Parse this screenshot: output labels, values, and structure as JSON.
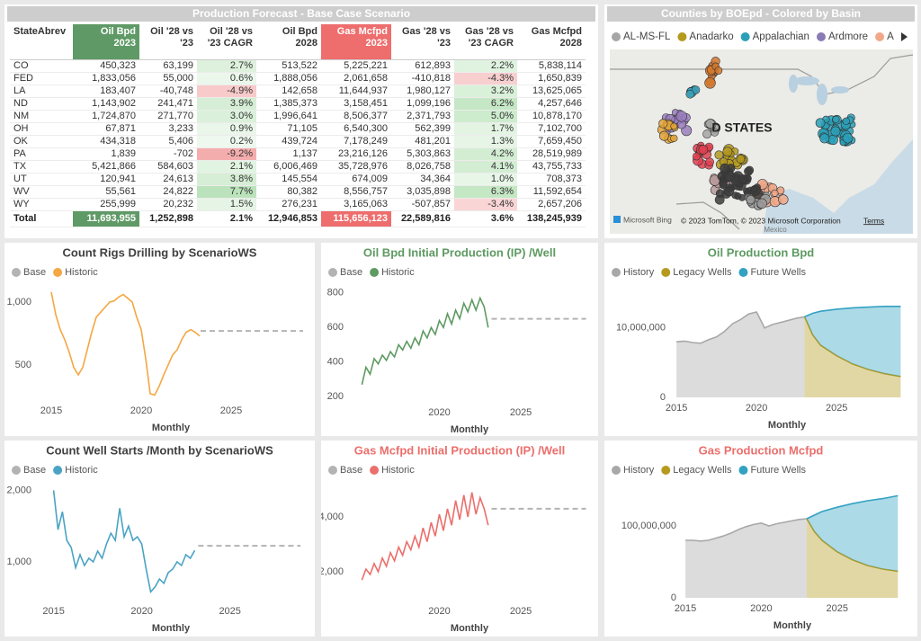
{
  "table": {
    "title": "Production Forecast - Base Case Scenario",
    "columns": [
      [
        "StateAbrev"
      ],
      [
        "Oil Bpd",
        "2023"
      ],
      [
        "Oil '28 vs",
        "'23"
      ],
      [
        "Oil '28 vs",
        "'23 CAGR"
      ],
      [
        "Oil Bpd",
        "2028"
      ],
      [
        "Gas Mcfpd",
        "2023"
      ],
      [
        "Gas '28 vs",
        "'23"
      ],
      [
        "Gas '28 vs",
        "'23 CAGR"
      ],
      [
        "Gas Mcfpd",
        "2028"
      ]
    ],
    "rows": [
      [
        "CO",
        "450,323",
        "63,199",
        "2.7%",
        "513,522",
        "5,225,221",
        "612,893",
        "2.2%",
        "5,838,114"
      ],
      [
        "FED",
        "1,833,056",
        "55,000",
        "0.6%",
        "1,888,056",
        "2,061,658",
        "-410,818",
        "-4.3%",
        "1,650,839"
      ],
      [
        "LA",
        "183,407",
        "-40,748",
        "-4.9%",
        "142,658",
        "11,644,937",
        "1,980,127",
        "3.2%",
        "13,625,065"
      ],
      [
        "ND",
        "1,143,902",
        "241,471",
        "3.9%",
        "1,385,373",
        "3,158,451",
        "1,099,196",
        "6.2%",
        "4,257,646"
      ],
      [
        "NM",
        "1,724,870",
        "271,770",
        "3.0%",
        "1,996,641",
        "8,506,377",
        "2,371,793",
        "5.0%",
        "10,878,170"
      ],
      [
        "OH",
        "67,871",
        "3,233",
        "0.9%",
        "71,105",
        "6,540,300",
        "562,399",
        "1.7%",
        "7,102,700"
      ],
      [
        "OK",
        "434,318",
        "5,406",
        "0.2%",
        "439,724",
        "7,178,249",
        "481,201",
        "1.3%",
        "7,659,450"
      ],
      [
        "PA",
        "1,839",
        "-702",
        "-9.2%",
        "1,137",
        "23,216,126",
        "5,303,863",
        "4.2%",
        "28,519,989"
      ],
      [
        "TX",
        "5,421,866",
        "584,603",
        "2.1%",
        "6,006,469",
        "35,728,976",
        "8,026,758",
        "4.1%",
        "43,755,733"
      ],
      [
        "UT",
        "120,941",
        "24,613",
        "3.8%",
        "145,554",
        "674,009",
        "34,364",
        "1.0%",
        "708,373"
      ],
      [
        "WV",
        "55,561",
        "24,822",
        "7.7%",
        "80,382",
        "8,556,757",
        "3,035,898",
        "6.3%",
        "11,592,654"
      ],
      [
        "WY",
        "255,999",
        "20,232",
        "1.5%",
        "276,231",
        "3,165,063",
        "-507,857",
        "-3.4%",
        "2,657,206"
      ]
    ],
    "total": [
      "Total",
      "11,693,955",
      "1,252,898",
      "2.1%",
      "12,946,853",
      "115,656,123",
      "22,589,816",
      "3.6%",
      "138,245,939"
    ]
  },
  "map": {
    "title": "Counties by BOEpd - Colored by Basin",
    "legend": [
      {
        "name": "AL-MS-FL",
        "color": "#a6a6a6"
      },
      {
        "name": "Anadarko",
        "color": "#b59a1e"
      },
      {
        "name": "Appalachian",
        "color": "#2aa0b8"
      },
      {
        "name": "Ardmore",
        "color": "#8a7bb5"
      },
      {
        "name": "Arkla",
        "color": "#f0a888"
      }
    ],
    "label": "D STATES",
    "region": "Mexico",
    "logo": "Microsoft Bing",
    "attribution": "© 2023 TomTom, © 2023 Microsoft Corporation",
    "terms": "Terms"
  },
  "chart_data": [
    {
      "type": "line",
      "title": "Count Rigs Drilling by ScenarioWS",
      "title_color": "#404040",
      "x_label": "Monthly",
      "xlim": [
        2014.15,
        2029.15
      ],
      "xticks": [
        2015,
        2020,
        2025
      ],
      "ylim": [
        220,
        1100
      ],
      "yticks": [
        500,
        {
          "value": 1000,
          "label": "1,000"
        }
      ],
      "series": [
        {
          "name": "Base",
          "color": "#b3b3b3",
          "dashed": true,
          "x": [
            2023.3,
            2029
          ],
          "values": [
            770,
            770
          ]
        },
        {
          "name": "Historic",
          "color": "#f4a742",
          "x": [
            2015,
            2015.25,
            2015.5,
            2015.75,
            2016,
            2016.25,
            2016.5,
            2016.75,
            2017,
            2017.25,
            2017.5,
            2017.75,
            2018,
            2018.25,
            2018.5,
            2018.75,
            2019,
            2019.25,
            2019.5,
            2019.75,
            2020,
            2020.25,
            2020.5,
            2020.75,
            2021,
            2021.25,
            2021.5,
            2021.75,
            2022,
            2022.25,
            2022.5,
            2022.75,
            2023,
            2023.25
          ],
          "values": [
            1080,
            900,
            780,
            700,
            600,
            480,
            420,
            480,
            620,
            760,
            880,
            920,
            960,
            1000,
            1010,
            1040,
            1060,
            1030,
            1000,
            880,
            780,
            550,
            270,
            260,
            330,
            420,
            500,
            580,
            620,
            700,
            760,
            780,
            760,
            730
          ]
        }
      ]
    },
    {
      "type": "line",
      "title": "Oil Bpd Initial Production (IP) /Well",
      "title_color": "#5e9a62",
      "x_label": "Monthly",
      "xlim": [
        2014.4,
        2029.3
      ],
      "xticks": [
        2020,
        2025
      ],
      "ylim": [
        170,
        830
      ],
      "yticks": [
        200,
        400,
        600,
        800
      ],
      "series": [
        {
          "name": "Base",
          "color": "#b3b3b3",
          "dashed": true,
          "x": [
            2023.2,
            2029
          ],
          "values": [
            650,
            650
          ]
        },
        {
          "name": "Historic",
          "color": "#5e9a62",
          "x": [
            2015.25,
            2015.5,
            2015.75,
            2016,
            2016.25,
            2016.5,
            2016.75,
            2017,
            2017.25,
            2017.5,
            2017.75,
            2018,
            2018.25,
            2018.5,
            2018.75,
            2019,
            2019.25,
            2019.5,
            2019.75,
            2020,
            2020.25,
            2020.5,
            2020.75,
            2021,
            2021.25,
            2021.5,
            2021.75,
            2022,
            2022.25,
            2022.5,
            2022.75,
            2023
          ],
          "values": [
            270,
            370,
            330,
            420,
            390,
            440,
            410,
            460,
            430,
            500,
            470,
            520,
            480,
            540,
            500,
            580,
            540,
            600,
            560,
            640,
            600,
            680,
            620,
            700,
            650,
            740,
            690,
            760,
            700,
            770,
            720,
            600
          ]
        }
      ]
    },
    {
      "type": "area",
      "title": "Oil Production Bpd",
      "title_color": "#5e9a62",
      "x_label": "Monthly",
      "xlim": [
        2014.6,
        2029.2
      ],
      "xticks": [
        2015,
        2020,
        2025
      ],
      "ylim": [
        0,
        14500000
      ],
      "yticks": [
        0,
        {
          "value": 10000000,
          "label": "10,000,000"
        }
      ],
      "series": [
        {
          "name": "History",
          "color": "#a8a8a8",
          "x": [
            2015,
            2015.5,
            2016,
            2016.5,
            2017,
            2017.5,
            2018,
            2018.5,
            2019,
            2019.5,
            2020,
            2020.5,
            2021,
            2021.5,
            2022,
            2022.5,
            2023
          ],
          "values": [
            8000000,
            8100000,
            7900000,
            7800000,
            8300000,
            8700000,
            9500000,
            10600000,
            11200000,
            12000000,
            12300000,
            10000000,
            10500000,
            10800000,
            11100000,
            11400000,
            11600000
          ]
        },
        {
          "name": "Legacy Wells",
          "color": "#b59a1e",
          "stack": "forecast",
          "x": [
            2023,
            2023.5,
            2024,
            2025,
            2026,
            2027,
            2028,
            2029
          ],
          "values": [
            11600000,
            9000000,
            7500000,
            6000000,
            4800000,
            4000000,
            3400000,
            3000000
          ]
        },
        {
          "name": "Future Wells",
          "color": "#33a2c2",
          "stack": "forecast",
          "x": [
            2023,
            2023.5,
            2024,
            2025,
            2026,
            2027,
            2028,
            2029
          ],
          "values": [
            0,
            3100000,
            4900000,
            6700000,
            8100000,
            9000000,
            9700000,
            10100000
          ]
        }
      ]
    },
    {
      "type": "line",
      "title": "Count Well Starts /Month by ScenarioWS",
      "title_color": "#404040",
      "x_label": "Monthly",
      "xlim": [
        2014.0,
        2029.3
      ],
      "xticks": [
        2015,
        2020,
        2025
      ],
      "ylim": [
        460,
        2130
      ],
      "yticks": [
        {
          "value": 1000,
          "label": "1,000"
        },
        {
          "value": 2000,
          "label": "2,000"
        }
      ],
      "series": [
        {
          "name": "Base",
          "color": "#b3b3b3",
          "dashed": true,
          "x": [
            2023.2,
            2029
          ],
          "values": [
            1225,
            1225
          ]
        },
        {
          "name": "Historic",
          "color": "#4aa3c4",
          "x": [
            2015,
            2015.25,
            2015.5,
            2015.75,
            2016,
            2016.25,
            2016.5,
            2016.75,
            2017,
            2017.25,
            2017.5,
            2017.75,
            2018,
            2018.25,
            2018.5,
            2018.75,
            2019,
            2019.25,
            2019.5,
            2019.75,
            2020,
            2020.25,
            2020.5,
            2020.75,
            2021,
            2021.25,
            2021.5,
            2021.75,
            2022,
            2022.25,
            2022.5,
            2022.75,
            2023
          ],
          "values": [
            2000,
            1450,
            1700,
            1300,
            1200,
            920,
            1100,
            950,
            1050,
            1000,
            1150,
            1050,
            1250,
            1400,
            1300,
            1750,
            1350,
            1500,
            1300,
            1350,
            1250,
            900,
            580,
            650,
            760,
            700,
            850,
            900,
            1000,
            950,
            1100,
            1050,
            1160
          ]
        }
      ]
    },
    {
      "type": "line",
      "title": "Gas Mcfpd Initial Production (IP) /Well",
      "title_color": "#eb6f6c",
      "x_label": "Monthly",
      "xlim": [
        2014.4,
        2029.3
      ],
      "xticks": [
        2020,
        2025
      ],
      "ylim": [
        950,
        5150
      ],
      "yticks": [
        {
          "value": 2000,
          "label": "2,000"
        },
        {
          "value": 4000,
          "label": "4,000"
        }
      ],
      "series": [
        {
          "name": "Base",
          "color": "#b3b3b3",
          "dashed": true,
          "x": [
            2023.2,
            2029
          ],
          "values": [
            4300,
            4300
          ]
        },
        {
          "name": "Historic",
          "color": "#eb6f6c",
          "x": [
            2015.25,
            2015.5,
            2015.75,
            2016,
            2016.25,
            2016.5,
            2016.75,
            2017,
            2017.25,
            2017.5,
            2017.75,
            2018,
            2018.25,
            2018.5,
            2018.75,
            2019,
            2019.25,
            2019.5,
            2019.75,
            2020,
            2020.25,
            2020.5,
            2020.75,
            2021,
            2021.25,
            2021.5,
            2021.75,
            2022,
            2022.25,
            2022.5,
            2022.75,
            2023
          ],
          "values": [
            1700,
            2100,
            1900,
            2300,
            2000,
            2500,
            2200,
            2700,
            2400,
            2900,
            2600,
            3100,
            2800,
            3300,
            2900,
            3600,
            3100,
            3800,
            3300,
            4100,
            3500,
            4300,
            3700,
            4600,
            3900,
            4800,
            4000,
            4900,
            4100,
            4700,
            4300,
            3700
          ]
        }
      ]
    },
    {
      "type": "area",
      "title": "Gas Production Mcfpd",
      "title_color": "#eb6f6c",
      "x_label": "Monthly",
      "xlim": [
        2014.7,
        2029.4
      ],
      "xticks": [
        2015,
        2020,
        2025
      ],
      "ylim": [
        0,
        150000000
      ],
      "yticks": [
        0,
        {
          "value": 100000000,
          "label": "100,000,000"
        }
      ],
      "series": [
        {
          "name": "History",
          "color": "#a8a8a8",
          "x": [
            2015,
            2015.5,
            2016,
            2016.5,
            2017,
            2017.5,
            2018,
            2018.5,
            2019,
            2019.5,
            2020,
            2020.5,
            2021,
            2021.5,
            2022,
            2022.5,
            2023
          ],
          "values": [
            80000000,
            80000000,
            79000000,
            80000000,
            83000000,
            86000000,
            90000000,
            95000000,
            99000000,
            102000000,
            104000000,
            100000000,
            103000000,
            105000000,
            107000000,
            109000000,
            110000000
          ]
        },
        {
          "name": "Legacy Wells",
          "color": "#b59a1e",
          "stack": "forecast",
          "x": [
            2023,
            2023.5,
            2024,
            2025,
            2026,
            2027,
            2028,
            2029
          ],
          "values": [
            110000000,
            92000000,
            80000000,
            64000000,
            53000000,
            45000000,
            40000000,
            37000000
          ]
        },
        {
          "name": "Future Wells",
          "color": "#33a2c2",
          "stack": "forecast",
          "x": [
            2023,
            2023.5,
            2024,
            2025,
            2026,
            2027,
            2028,
            2029
          ],
          "values": [
            0,
            23000000,
            40000000,
            62000000,
            78000000,
            90000000,
            98000000,
            105000000
          ]
        }
      ]
    }
  ]
}
